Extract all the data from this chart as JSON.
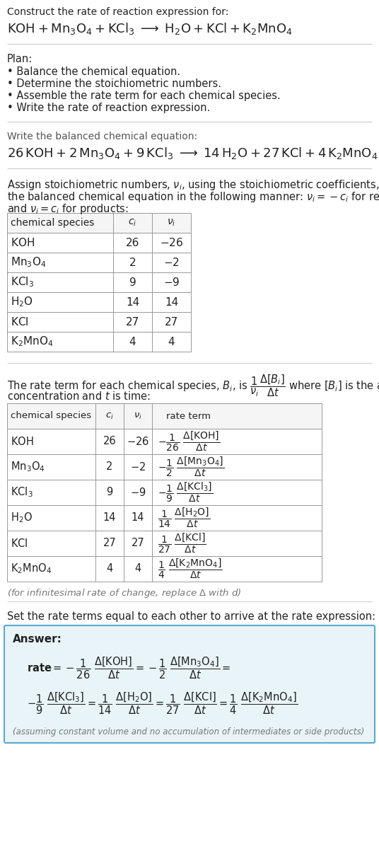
{
  "bg_color": "#ffffff",
  "answer_box_color": "#e8f4f8",
  "answer_box_border": "#5aabcf",
  "separator_color": "#cccccc",
  "table_border_color": "#999999",
  "table_header_bg": "#f5f5f5",
  "text_color": "#222222",
  "gray_color": "#555555",
  "light_gray": "#777777"
}
